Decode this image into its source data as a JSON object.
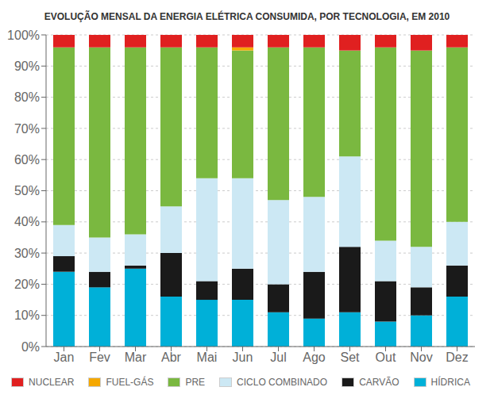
{
  "chart_data": {
    "type": "bar",
    "title": "EVOLUÇÃO MENSAL DA ENERGIA ELÉTRICA CONSUMIDA, POR TECNOLOGIA, EM 2010",
    "categories": [
      "Jan",
      "Fev",
      "Mar",
      "Abr",
      "Mai",
      "Jun",
      "Jul",
      "Ago",
      "Set",
      "Out",
      "Nov",
      "Dez"
    ],
    "series": [
      {
        "name": "HÍDRICA",
        "color": "#00b0d8",
        "values": [
          24,
          19,
          25,
          16,
          15,
          15,
          11,
          9,
          11,
          8,
          10,
          16
        ]
      },
      {
        "name": "CARVÃO",
        "color": "#1a1a1a",
        "values": [
          5,
          5,
          1,
          14,
          6,
          10,
          9,
          15,
          21,
          13,
          9,
          10
        ]
      },
      {
        "name": "CICLO COMBINADO",
        "color": "#cce8f4",
        "values": [
          10,
          11,
          10,
          15,
          33,
          29,
          27,
          24,
          29,
          13,
          13,
          14
        ]
      },
      {
        "name": "PRE",
        "color": "#7ab840",
        "values": [
          57,
          61,
          60,
          51,
          42,
          41,
          49,
          48,
          34,
          62,
          63,
          56
        ]
      },
      {
        "name": "FUEL-GÁS",
        "color": "#f5a800",
        "values": [
          0,
          0,
          0,
          0,
          0,
          1,
          0,
          0,
          0,
          0,
          0,
          0
        ]
      },
      {
        "name": "NUCLEAR",
        "color": "#e02020",
        "values": [
          4,
          4,
          4,
          4,
          4,
          4,
          4,
          4,
          5,
          4,
          5,
          4
        ]
      }
    ],
    "stacked": true,
    "ylim": [
      0,
      100
    ],
    "yticks": [
      {
        "value": 0,
        "label": "0%"
      },
      {
        "value": 10,
        "label": "10%"
      },
      {
        "value": 20,
        "label": "20%"
      },
      {
        "value": 30,
        "label": "30%"
      },
      {
        "value": 40,
        "label": "40%"
      },
      {
        "value": 50,
        "label": "50%"
      },
      {
        "value": 60,
        "label": "60%"
      },
      {
        "value": 70,
        "label": "70%"
      },
      {
        "value": 80,
        "label": "80%"
      },
      {
        "value": 90,
        "label": "90%"
      },
      {
        "value": 100,
        "label": "100%"
      }
    ],
    "grid": true,
    "legend": "bottom"
  }
}
